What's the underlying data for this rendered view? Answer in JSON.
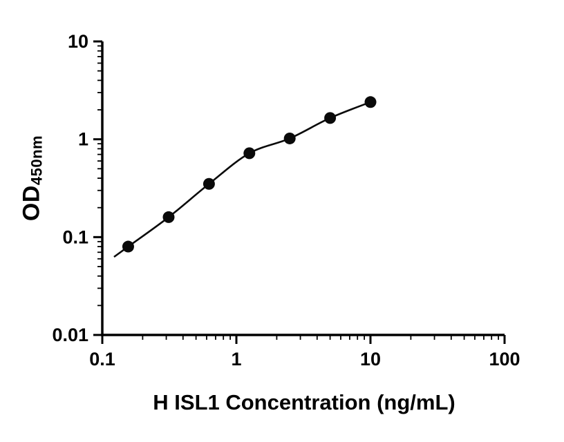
{
  "chart_data": {
    "type": "scatter",
    "title": "",
    "xlabel": "H ISL1 Concentration (ng/mL)",
    "ylabel": "OD",
    "ylabel_sub": "450nm",
    "x": [
      0.156,
      0.3125,
      0.625,
      1.25,
      2.5,
      5,
      10
    ],
    "y": [
      0.08,
      0.16,
      0.35,
      0.72,
      1.02,
      1.65,
      2.4
    ],
    "xscale": "log",
    "yscale": "log",
    "xlim": [
      0.1,
      100
    ],
    "ylim": [
      0.01,
      10
    ],
    "x_tick_labels": [
      "0.1",
      "1",
      "10",
      "100"
    ],
    "x_tick_values": [
      0.1,
      1,
      10,
      100
    ],
    "y_tick_labels": [
      "0.01",
      "0.1",
      "1",
      "10"
    ],
    "y_tick_values": [
      0.01,
      0.1,
      1,
      10
    ],
    "fit_curve": true,
    "grid": false,
    "legend": false,
    "marker_color": "#0a0a0a",
    "line_color": "#0a0a0a",
    "axis_color": "#000000",
    "background": "#ffffff"
  }
}
